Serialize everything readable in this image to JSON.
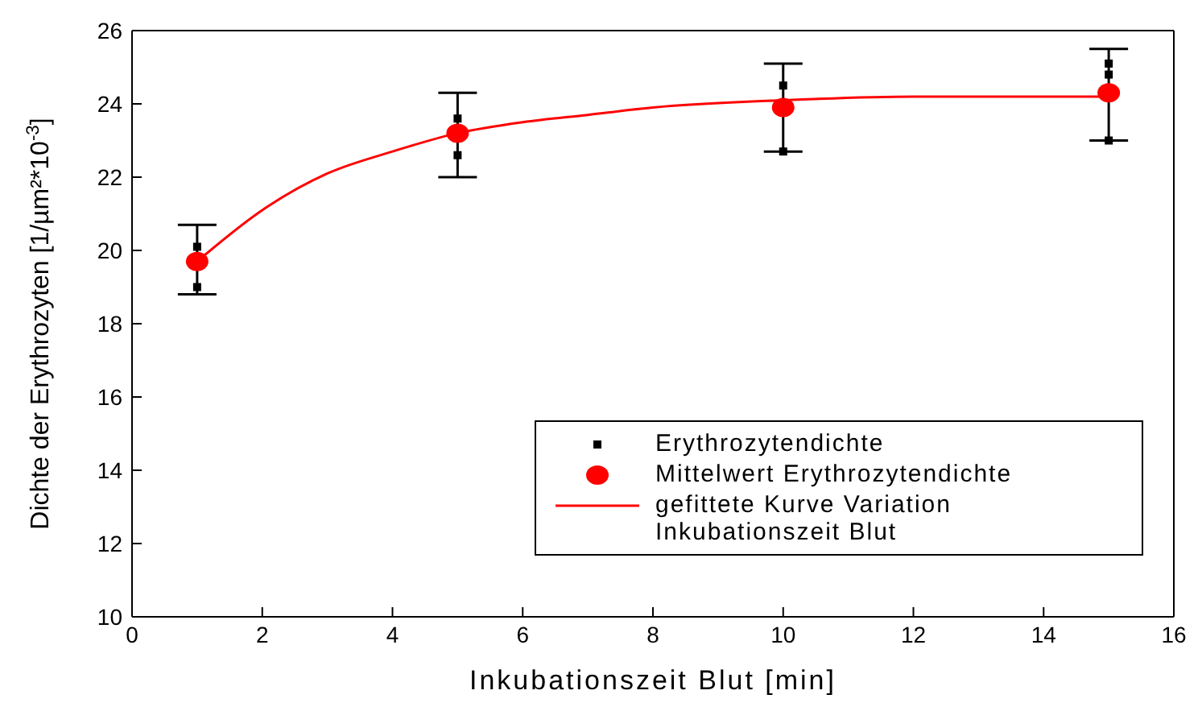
{
  "chart_data": {
    "type": "scatter",
    "xlabel": "Inkubationszeit Blut [min]",
    "ylabel": "Dichte der Erythrozyten [1/µm²*10$^{-3}$]",
    "xlim": [
      0,
      16
    ],
    "xticks": [
      0,
      2,
      4,
      6,
      8,
      10,
      12,
      14,
      16
    ],
    "ylim": [
      10,
      26
    ],
    "yticks": [
      10,
      12,
      14,
      16,
      18,
      20,
      22,
      24,
      26
    ],
    "grid": false,
    "legend": "bottom right",
    "series": [
      {
        "name": "Erythrozytendichte",
        "marker": "square",
        "color": "#000000",
        "x": [
          1,
          1,
          5,
          5,
          10,
          10,
          15,
          15,
          15
        ],
        "values": [
          20.1,
          19.0,
          23.6,
          22.6,
          24.5,
          22.7,
          25.1,
          24.8,
          23.0
        ]
      },
      {
        "name": "Mittelwert Erythrozytendichte",
        "marker": "circle",
        "color": "#ff0000",
        "x": [
          1,
          5,
          10,
          15
        ],
        "values": [
          19.7,
          23.2,
          23.9,
          24.3
        ],
        "errors": [
          [
            18.8,
            20.7
          ],
          [
            22.0,
            24.3
          ],
          [
            22.7,
            25.1
          ],
          [
            23.0,
            25.5
          ]
        ]
      },
      {
        "name": "gefittete Kurve Variation Inkubationszeit Blut",
        "type": "line",
        "marker": "none",
        "color": "#ff0000",
        "x": [
          1,
          2,
          3,
          4,
          5,
          6,
          7,
          8,
          10,
          12,
          15
        ],
        "values": [
          19.7,
          21.1,
          22.1,
          22.7,
          23.2,
          23.5,
          23.7,
          23.9,
          24.1,
          24.2,
          24.2
        ]
      }
    ]
  }
}
